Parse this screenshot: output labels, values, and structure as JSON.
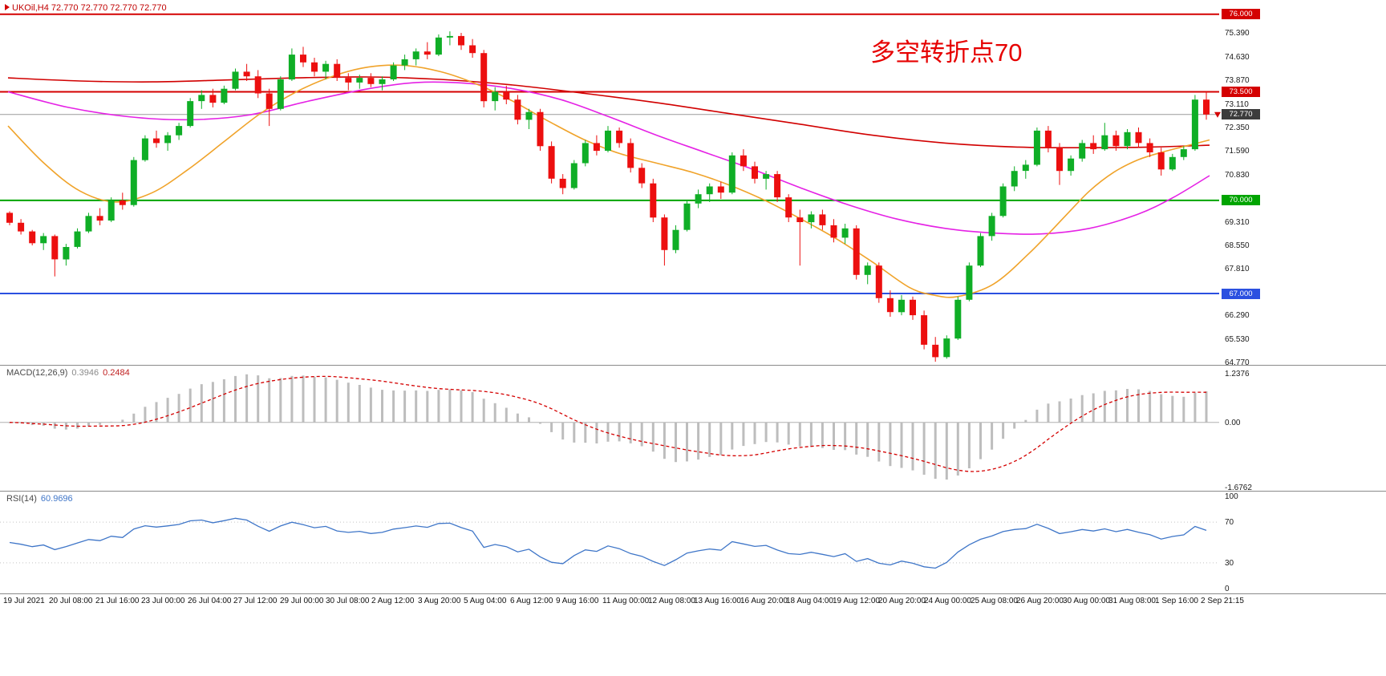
{
  "symbol_bar": {
    "text": "UKOil,H4 72.770 72.770 72.770 72.770"
  },
  "annotation": {
    "text": "多空转折点70",
    "color": "#e60000"
  },
  "colors": {
    "up": "#0fae26",
    "down": "#ec0f0f",
    "hline_red": "#d40000",
    "hline_green": "#00a400",
    "hline_blue": "#2b50e0",
    "current_price_line": "#9a9a9a",
    "current_price_badge": "#3c3c3c",
    "macd_histogram": "#bdbdbd",
    "macd_signal": "#d40000",
    "rsi_line": "#3f76c8"
  },
  "price_axis": {
    "ticks": [
      "75.390",
      "74.630",
      "73.870",
      "73.110",
      "72.350",
      "71.590",
      "70.830",
      "69.310",
      "68.550",
      "67.810",
      "66.290",
      "65.530",
      "64.770"
    ],
    "tick_values": [
      75.39,
      74.63,
      73.87,
      73.11,
      72.35,
      71.59,
      70.83,
      69.31,
      68.55,
      67.81,
      66.29,
      65.53,
      64.77
    ],
    "badges": [
      {
        "label": "76.000",
        "price": 76.0,
        "color": "#d40000"
      },
      {
        "label": "73.500",
        "price": 73.5,
        "color": "#d40000"
      },
      {
        "label": "72.770",
        "price": 72.77,
        "color": "#3c3c3c"
      },
      {
        "label": "70.000",
        "price": 70.0,
        "color": "#00a400"
      },
      {
        "label": "67.000",
        "price": 67.0,
        "color": "#2b50e0"
      }
    ]
  },
  "hlines": [
    {
      "price": 76.0,
      "color": "#d40000",
      "width": 2,
      "name": "resistance-76"
    },
    {
      "price": 73.5,
      "color": "#d40000",
      "width": 2,
      "name": "resistance-73.5"
    },
    {
      "price": 72.77,
      "color": "#9a9a9a",
      "width": 1,
      "name": "current-price-line"
    },
    {
      "price": 70.0,
      "color": "#00a400",
      "width": 2,
      "name": "pivot-70"
    },
    {
      "price": 67.0,
      "color": "#2b50e0",
      "width": 2,
      "name": "support-67"
    }
  ],
  "macd_panel": {
    "label": "MACD(12,26,9)",
    "value_main": "0.3946",
    "value_signal": "0.2484",
    "axis": {
      "max_label": "1.2376",
      "zero_label": "0.00",
      "min_label": "-1.6762",
      "vmax": 1.2376,
      "vmin": -1.6762
    }
  },
  "rsi_panel": {
    "label": "RSI(14)",
    "value": "60.9696",
    "ticks": [
      "100",
      "70",
      "30",
      "0"
    ],
    "tick_values": [
      100,
      70,
      30,
      0
    ],
    "levels": [
      70,
      30
    ]
  },
  "chart_data": {
    "type": "candlestick",
    "symbol": "UKOil",
    "timeframe": "H4",
    "title": "",
    "ylim": [
      64.77,
      76.0
    ],
    "last_price": 72.77,
    "x_labels": [
      "19 Jul 2021",
      "20 Jul 08:00",
      "21 Jul 16:00",
      "23 Jul 00:00",
      "26 Jul 04:00",
      "27 Jul 12:00",
      "29 Jul 00:00",
      "30 Jul 08:00",
      "2 Aug 12:00",
      "3 Aug 20:00",
      "5 Aug 04:00",
      "6 Aug 12:00",
      "9 Aug 16:00",
      "11 Aug 00:00",
      "12 Aug 08:00",
      "13 Aug 16:00",
      "16 Aug 20:00",
      "18 Aug 04:00",
      "19 Aug 12:00",
      "20 Aug 20:00",
      "24 Aug 00:00",
      "25 Aug 08:00",
      "26 Aug 20:00",
      "30 Aug 00:00",
      "31 Aug 08:00",
      "1 Sep 16:00",
      "2 Sep 21:15"
    ],
    "candles": [
      [
        69.6,
        69.65,
        69.2,
        69.28
      ],
      [
        69.28,
        69.4,
        68.9,
        69.0
      ],
      [
        69.0,
        69.05,
        68.55,
        68.62
      ],
      [
        68.62,
        68.95,
        68.4,
        68.85
      ],
      [
        68.85,
        68.9,
        67.55,
        68.1
      ],
      [
        68.1,
        68.6,
        67.9,
        68.5
      ],
      [
        68.5,
        69.1,
        68.45,
        69.0
      ],
      [
        69.0,
        69.6,
        68.95,
        69.5
      ],
      [
        69.5,
        69.75,
        69.2,
        69.35
      ],
      [
        69.35,
        70.1,
        69.3,
        70.0
      ],
      [
        70.0,
        70.25,
        69.7,
        69.85
      ],
      [
        69.85,
        71.4,
        69.8,
        71.3
      ],
      [
        71.3,
        72.1,
        71.25,
        72.0
      ],
      [
        72.0,
        72.25,
        71.7,
        71.85
      ],
      [
        71.85,
        72.2,
        71.6,
        72.1
      ],
      [
        72.1,
        72.5,
        71.95,
        72.4
      ],
      [
        72.4,
        73.3,
        72.35,
        73.2
      ],
      [
        73.2,
        73.55,
        72.95,
        73.4
      ],
      [
        73.4,
        73.6,
        73.0,
        73.15
      ],
      [
        73.15,
        73.7,
        73.1,
        73.6
      ],
      [
        73.6,
        74.25,
        73.55,
        74.15
      ],
      [
        74.15,
        74.4,
        73.85,
        74.0
      ],
      [
        74.0,
        74.2,
        73.3,
        73.45
      ],
      [
        73.45,
        73.6,
        72.4,
        72.95
      ],
      [
        72.95,
        74.0,
        72.9,
        73.9
      ],
      [
        73.9,
        74.9,
        73.85,
        74.7
      ],
      [
        74.7,
        74.95,
        74.3,
        74.45
      ],
      [
        74.45,
        74.6,
        74.0,
        74.15
      ],
      [
        74.15,
        74.5,
        73.9,
        74.4
      ],
      [
        74.4,
        74.55,
        73.85,
        73.95
      ],
      [
        73.95,
        74.1,
        73.55,
        73.8
      ],
      [
        73.8,
        74.05,
        73.6,
        73.95
      ],
      [
        73.95,
        74.1,
        73.65,
        73.75
      ],
      [
        73.75,
        74.0,
        73.55,
        73.9
      ],
      [
        73.9,
        74.45,
        73.85,
        74.35
      ],
      [
        74.35,
        74.7,
        74.2,
        74.55
      ],
      [
        74.55,
        74.9,
        74.35,
        74.8
      ],
      [
        74.8,
        75.1,
        74.55,
        74.7
      ],
      [
        74.7,
        75.35,
        74.65,
        75.25
      ],
      [
        75.25,
        75.45,
        75.0,
        75.3
      ],
      [
        75.3,
        75.4,
        74.85,
        75.0
      ],
      [
        75.0,
        75.2,
        74.6,
        74.75
      ],
      [
        74.75,
        74.85,
        73.0,
        73.2
      ],
      [
        73.2,
        73.65,
        72.9,
        73.5
      ],
      [
        73.5,
        73.7,
        73.1,
        73.25
      ],
      [
        73.25,
        73.4,
        72.45,
        72.6
      ],
      [
        72.6,
        72.95,
        72.3,
        72.85
      ],
      [
        72.85,
        72.95,
        71.6,
        71.75
      ],
      [
        71.75,
        71.9,
        70.55,
        70.7
      ],
      [
        70.7,
        70.85,
        70.2,
        70.4
      ],
      [
        70.4,
        71.3,
        70.35,
        71.2
      ],
      [
        71.2,
        71.95,
        71.1,
        71.85
      ],
      [
        71.85,
        72.1,
        71.45,
        71.6
      ],
      [
        71.6,
        72.4,
        71.55,
        72.25
      ],
      [
        72.25,
        72.35,
        71.7,
        71.85
      ],
      [
        71.85,
        72.0,
        70.9,
        71.05
      ],
      [
        71.05,
        71.2,
        70.4,
        70.55
      ],
      [
        70.55,
        70.7,
        69.3,
        69.45
      ],
      [
        69.45,
        69.55,
        67.9,
        68.4
      ],
      [
        68.4,
        69.2,
        68.3,
        69.05
      ],
      [
        69.05,
        70.0,
        69.0,
        69.9
      ],
      [
        69.9,
        70.35,
        69.75,
        70.2
      ],
      [
        70.2,
        70.55,
        69.95,
        70.45
      ],
      [
        70.45,
        70.6,
        70.05,
        70.25
      ],
      [
        70.25,
        71.55,
        70.2,
        71.45
      ],
      [
        71.45,
        71.65,
        70.95,
        71.1
      ],
      [
        71.1,
        71.25,
        70.55,
        70.7
      ],
      [
        70.7,
        70.95,
        70.35,
        70.85
      ],
      [
        70.85,
        70.95,
        69.95,
        70.1
      ],
      [
        70.1,
        70.2,
        69.3,
        69.45
      ],
      [
        69.45,
        69.7,
        67.9,
        69.3
      ],
      [
        69.3,
        69.65,
        69.1,
        69.55
      ],
      [
        69.55,
        69.7,
        69.05,
        69.2
      ],
      [
        69.2,
        69.4,
        68.65,
        68.8
      ],
      [
        68.8,
        69.25,
        68.6,
        69.1
      ],
      [
        69.1,
        69.2,
        67.45,
        67.6
      ],
      [
        67.6,
        68.0,
        67.3,
        67.9
      ],
      [
        67.9,
        68.0,
        66.7,
        66.85
      ],
      [
        66.85,
        67.1,
        66.25,
        66.4
      ],
      [
        66.4,
        66.95,
        66.3,
        66.8
      ],
      [
        66.8,
        66.9,
        66.15,
        66.3
      ],
      [
        66.3,
        66.45,
        65.2,
        65.35
      ],
      [
        65.35,
        65.6,
        64.8,
        64.95
      ],
      [
        64.95,
        65.65,
        64.9,
        65.55
      ],
      [
        65.55,
        66.9,
        65.5,
        66.8
      ],
      [
        66.8,
        68.0,
        66.75,
        67.9
      ],
      [
        67.9,
        68.95,
        67.85,
        68.85
      ],
      [
        68.85,
        69.6,
        68.7,
        69.5
      ],
      [
        69.5,
        70.55,
        69.45,
        70.45
      ],
      [
        70.45,
        71.1,
        70.3,
        70.95
      ],
      [
        70.95,
        71.3,
        70.7,
        71.15
      ],
      [
        71.15,
        72.35,
        71.1,
        72.25
      ],
      [
        72.25,
        72.4,
        71.55,
        71.7
      ],
      [
        71.7,
        71.85,
        70.5,
        70.95
      ],
      [
        70.95,
        71.45,
        70.8,
        71.35
      ],
      [
        71.35,
        71.95,
        71.25,
        71.85
      ],
      [
        71.85,
        72.1,
        71.5,
        71.65
      ],
      [
        71.65,
        72.5,
        71.6,
        72.1
      ],
      [
        72.1,
        72.25,
        71.6,
        71.75
      ],
      [
        71.75,
        72.3,
        71.65,
        72.2
      ],
      [
        72.2,
        72.35,
        71.7,
        71.85
      ],
      [
        71.85,
        72.0,
        71.4,
        71.55
      ],
      [
        71.55,
        71.7,
        70.8,
        71.0
      ],
      [
        71.0,
        71.5,
        70.95,
        71.4
      ],
      [
        71.4,
        71.75,
        71.3,
        71.65
      ],
      [
        71.65,
        73.4,
        71.6,
        73.25
      ],
      [
        73.25,
        73.5,
        72.6,
        72.77
      ]
    ],
    "moving_averages": [
      {
        "name": "ma-red",
        "color": "#d10000",
        "points": [
          [
            0,
            73.95
          ],
          [
            0.06,
            73.85
          ],
          [
            0.12,
            73.82
          ],
          [
            0.18,
            73.88
          ],
          [
            0.24,
            73.95
          ],
          [
            0.3,
            73.98
          ],
          [
            0.36,
            73.9
          ],
          [
            0.42,
            73.72
          ],
          [
            0.48,
            73.45
          ],
          [
            0.54,
            73.15
          ],
          [
            0.6,
            72.8
          ],
          [
            0.66,
            72.45
          ],
          [
            0.72,
            72.1
          ],
          [
            0.78,
            71.85
          ],
          [
            0.84,
            71.72
          ],
          [
            0.9,
            71.7
          ],
          [
            0.95,
            71.72
          ],
          [
            1,
            71.78
          ]
        ]
      },
      {
        "name": "ma-magenta",
        "color": "#e522e5",
        "points": [
          [
            0,
            73.5
          ],
          [
            0.05,
            73.0
          ],
          [
            0.1,
            72.7
          ],
          [
            0.15,
            72.6
          ],
          [
            0.2,
            72.75
          ],
          [
            0.25,
            73.2
          ],
          [
            0.3,
            73.6
          ],
          [
            0.34,
            73.8
          ],
          [
            0.38,
            73.78
          ],
          [
            0.42,
            73.6
          ],
          [
            0.46,
            73.25
          ],
          [
            0.5,
            72.7
          ],
          [
            0.54,
            72.1
          ],
          [
            0.58,
            71.55
          ],
          [
            0.62,
            71.0
          ],
          [
            0.66,
            70.4
          ],
          [
            0.7,
            69.85
          ],
          [
            0.74,
            69.4
          ],
          [
            0.78,
            69.1
          ],
          [
            0.82,
            68.95
          ],
          [
            0.86,
            68.92
          ],
          [
            0.9,
            69.1
          ],
          [
            0.94,
            69.55
          ],
          [
            0.97,
            70.1
          ],
          [
            1,
            70.8
          ]
        ]
      },
      {
        "name": "ma-orange",
        "color": "#f0a32a",
        "points": [
          [
            0,
            72.4
          ],
          [
            0.03,
            71.2
          ],
          [
            0.06,
            70.3
          ],
          [
            0.09,
            69.95
          ],
          [
            0.12,
            70.25
          ],
          [
            0.15,
            71.0
          ],
          [
            0.18,
            71.9
          ],
          [
            0.21,
            72.8
          ],
          [
            0.24,
            73.5
          ],
          [
            0.27,
            74.0
          ],
          [
            0.3,
            74.3
          ],
          [
            0.33,
            74.35
          ],
          [
            0.36,
            74.15
          ],
          [
            0.39,
            73.75
          ],
          [
            0.42,
            73.2
          ],
          [
            0.45,
            72.55
          ],
          [
            0.48,
            71.95
          ],
          [
            0.51,
            71.5
          ],
          [
            0.54,
            71.2
          ],
          [
            0.57,
            70.9
          ],
          [
            0.6,
            70.5
          ],
          [
            0.63,
            70.0
          ],
          [
            0.66,
            69.4
          ],
          [
            0.69,
            68.75
          ],
          [
            0.72,
            68.0
          ],
          [
            0.75,
            67.2
          ],
          [
            0.77,
            66.95
          ],
          [
            0.79,
            66.9
          ],
          [
            0.82,
            67.3
          ],
          [
            0.85,
            68.3
          ],
          [
            0.88,
            69.5
          ],
          [
            0.9,
            70.3
          ],
          [
            0.92,
            70.9
          ],
          [
            0.94,
            71.3
          ],
          [
            0.96,
            71.55
          ],
          [
            0.98,
            71.75
          ],
          [
            1,
            71.95
          ]
        ]
      }
    ],
    "indicators": {
      "macd": {
        "fast": 12,
        "slow": 26,
        "signal": 9,
        "current_main": 0.3946,
        "current_signal": 0.2484
      },
      "rsi": {
        "period": 14,
        "current": 60.9696
      }
    }
  }
}
